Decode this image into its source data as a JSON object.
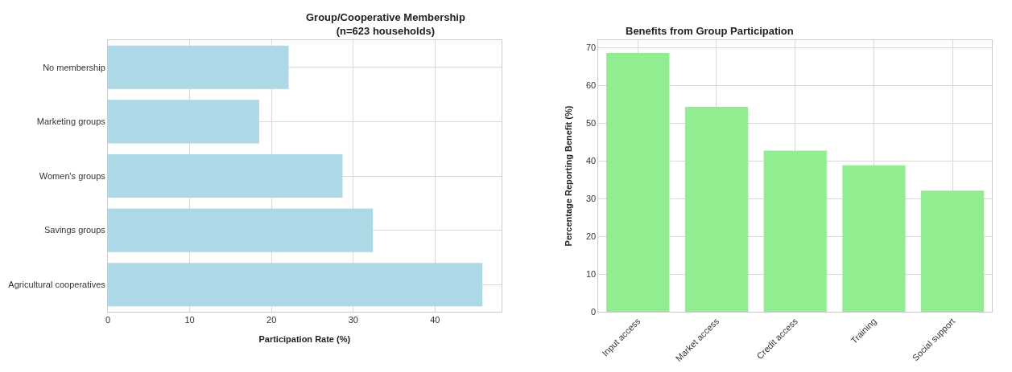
{
  "chart_data": [
    {
      "type": "bar",
      "orientation": "horizontal",
      "title": "Group/Cooperative Membership\n(n=623 households)",
      "xlabel": "Participation Rate (%)",
      "categories": [
        "No membership",
        "Marketing groups",
        "Women's groups",
        "Savings groups",
        "Agricultural cooperatives"
      ],
      "values": [
        22.1,
        18.5,
        28.7,
        32.4,
        45.8
      ],
      "color": "#add8e6",
      "xlim": [
        0,
        48.1
      ],
      "xticks": [
        0,
        10,
        20,
        30,
        40
      ],
      "grid": true
    },
    {
      "type": "bar",
      "title": "Benefits from Group Participation",
      "ylabel": "Percentage Reporting Benefit (%)",
      "categories": [
        "Input access",
        "Market access",
        "Credit access",
        "Training",
        "Social support"
      ],
      "values": [
        68.6,
        54.3,
        42.7,
        38.8,
        32.1
      ],
      "color": "#90ee90",
      "ylim": [
        0,
        72
      ],
      "yticks": [
        0,
        10,
        20,
        30,
        40,
        50,
        60,
        70
      ],
      "grid": true
    }
  ]
}
